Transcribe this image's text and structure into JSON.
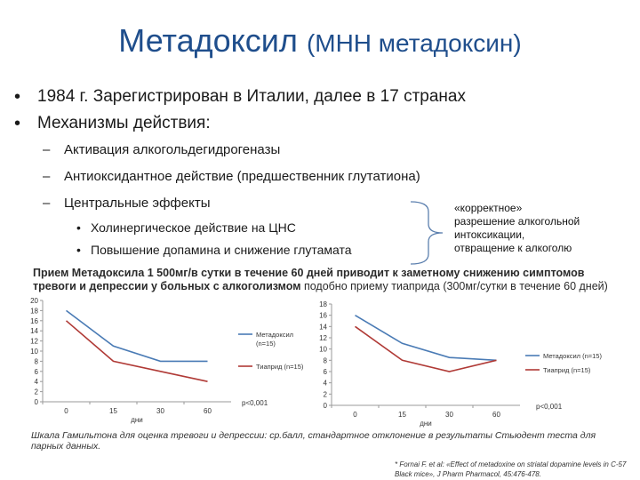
{
  "title": {
    "main": "Метадоксил",
    "sub": "(МНН метадоксин)"
  },
  "bullets": [
    "1984 г. Зарегистрирован в Италии, далее в 17 странах",
    "Механизмы действия:"
  ],
  "sub_bullets": [
    "Активация алкогольдегидрогеназы",
    "Антиоксидантное действие (предшественник глутатиона)",
    "Центральные эффекты"
  ],
  "subsub_bullets": [
    "Холинергическое действие на ЦНС",
    "Повышение допамина и снижение глутамата"
  ],
  "note_lines": [
    "«корректное»",
    "разрешение алкогольной",
    "интоксикации,",
    "отвращение к алкоголю"
  ],
  "caption": {
    "bold": "Прием Метадоксила 1 500мг/в сутки в течение 60 дней приводит к заметному снижению симптомов тревоги и депрессии у больных с алкоголизмом",
    "normal": " подобно приему тиаприда (300мг/сутки в течение 60 дней)"
  },
  "footnote": "Шкала Гамильтона для оценка тревоги и депрессии: ср.балл, стандартное отклонение в результаты Стьюдент теста для парных данных.",
  "reference": "* Fornai F. et al: «Effect of metadoxine on striatal dopamine levels in C-57 Black mice», J Pharm Pharmacol, 45:476-478.",
  "colors": {
    "title": "#1f4e8c",
    "metadoxil": "#4a7bb5",
    "tiaprid": "#b03a36"
  },
  "chart_data": [
    {
      "type": "line",
      "x": [
        0,
        15,
        30,
        60
      ],
      "tick_labels": [
        "0",
        "15",
        "30",
        "60"
      ],
      "xlabel": "дни",
      "ylim": [
        0,
        20
      ],
      "yticks": [
        0,
        2,
        4,
        6,
        8,
        10,
        12,
        14,
        16,
        18,
        20
      ],
      "legend": "right",
      "annotation": "p<0,001",
      "series": [
        {
          "name": "Метадоксил (n=15)",
          "values": [
            18,
            11,
            8,
            8
          ]
        },
        {
          "name": "Тиаприд (n=15)",
          "values": [
            16,
            8,
            6,
            4
          ]
        }
      ]
    },
    {
      "type": "line",
      "x": [
        0,
        15,
        30,
        60
      ],
      "tick_labels": [
        "0",
        "15",
        "30",
        "60"
      ],
      "xlabel": "дни",
      "ylim": [
        0,
        18
      ],
      "yticks": [
        0,
        2,
        4,
        6,
        8,
        10,
        12,
        14,
        16,
        18
      ],
      "legend": "right",
      "annotation": "p<0,001",
      "series": [
        {
          "name": "Метадоксил (n=15)",
          "values": [
            16,
            11,
            8.5,
            8
          ]
        },
        {
          "name": "Тиаприд (n=15)",
          "values": [
            14,
            8,
            6,
            8
          ]
        }
      ]
    }
  ]
}
